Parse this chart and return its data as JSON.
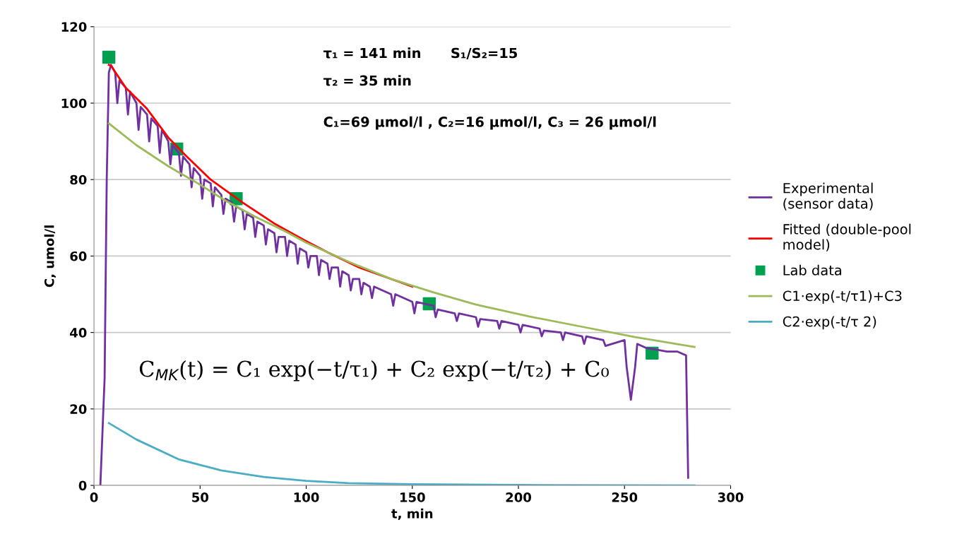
{
  "chart_data": {
    "type": "line",
    "xlabel": "t, min",
    "ylabel": "C, umol/l",
    "xlim": [
      0,
      300
    ],
    "xticks": [
      0,
      50,
      100,
      150,
      200,
      250,
      300
    ],
    "ylim": [
      0,
      120
    ],
    "yticks": [
      0,
      20,
      40,
      60,
      80,
      100,
      120
    ],
    "grid": "y",
    "legend": "right",
    "marker": "none",
    "line_style": "solid",
    "annotations": [
      "τ₁ = 141 min",
      "τ₂ = 35 min",
      "S₁/S₂=15",
      "C₁=69 μmol/l , C₂=16 μmol/l, C₃ = 26 μmol/l",
      "C$_{MK}$(t) = C₁ exp(−t/τ₁) + C₂ exp(−t/τ₂) + C₀"
    ],
    "series": [
      {
        "name": "Experimental\n(sensor data)",
        "color": "#7030a0",
        "x": [
          3,
          4,
          5,
          6,
          7,
          8,
          10,
          11,
          12,
          15,
          16,
          17,
          20,
          21,
          22,
          25,
          26,
          27,
          30,
          31,
          32,
          35,
          36,
          37,
          40,
          41,
          42,
          45,
          46,
          47,
          50,
          51,
          52,
          55,
          56,
          57,
          60,
          61,
          62,
          65,
          66,
          67,
          70,
          71,
          72,
          75,
          76,
          77,
          80,
          81,
          82,
          85,
          86,
          87,
          90,
          91,
          92,
          95,
          96,
          97,
          100,
          101,
          102,
          105,
          106,
          107,
          110,
          111,
          112,
          115,
          116,
          117,
          120,
          121,
          122,
          125,
          126,
          127,
          130,
          131,
          132,
          140,
          141,
          142,
          150,
          151,
          152,
          160,
          161,
          162,
          170,
          171,
          172,
          180,
          181,
          182,
          190,
          191,
          192,
          200,
          201,
          202,
          210,
          211,
          212,
          220,
          221,
          222,
          230,
          231,
          232,
          240,
          241,
          250,
          251,
          253,
          255,
          256,
          260,
          265,
          270,
          275,
          279,
          280
        ],
        "values": [
          0,
          14,
          28,
          80,
          108,
          110,
          108,
          100,
          106,
          104,
          97,
          103,
          100,
          93,
          99,
          97,
          90,
          96,
          94,
          87,
          93,
          90,
          84,
          89,
          87,
          81,
          86,
          84,
          78,
          83,
          81,
          75,
          80,
          79,
          73,
          78,
          76,
          71,
          75,
          74,
          69,
          73,
          72,
          67,
          71,
          70,
          65,
          69,
          68,
          63,
          67,
          66,
          61,
          65,
          65,
          60,
          64,
          63,
          58,
          62,
          61,
          57,
          60,
          60,
          55,
          59,
          58,
          54,
          57,
          57,
          52,
          56,
          55,
          51,
          54,
          54,
          50,
          53,
          52,
          49,
          52,
          50,
          47,
          50,
          48,
          45,
          48,
          47,
          44,
          46,
          45,
          43,
          45,
          44,
          41.5,
          43.5,
          43,
          41,
          43,
          42,
          40,
          42,
          41,
          39,
          40.5,
          40,
          38,
          40,
          39,
          37,
          39,
          38,
          36.5,
          38,
          31,
          22.4,
          31,
          37,
          36,
          35.5,
          35,
          35,
          34,
          2
        ]
      },
      {
        "name": "Fitted (double-pool\nmodel)",
        "color": "#ff0000",
        "x": [
          7,
          8,
          15,
          25,
          35,
          43,
          55,
          70,
          85,
          99,
          110,
          125,
          145,
          150
        ],
        "values": [
          110,
          109.8,
          104,
          98.5,
          91,
          86.4,
          80,
          74,
          68.5,
          64.2,
          61,
          57,
          53,
          52
        ]
      },
      {
        "name": "Lab data",
        "type": "scatter",
        "marker": "square",
        "color": "#00a050",
        "x": [
          7,
          39,
          67,
          158,
          263
        ],
        "values": [
          112,
          88,
          75,
          47.5,
          34.6
        ]
      },
      {
        "name": "C1·exp(-t/τ1)+C3",
        "color": "#9bbb59",
        "x": [
          7,
          20,
          35,
          49,
          62,
          76,
          90,
          100,
          120,
          140,
          160,
          180,
          205,
          230,
          255,
          283
        ],
        "values": [
          94.7,
          89,
          83.5,
          79,
          74.5,
          70.3,
          66.5,
          63.5,
          58.5,
          54,
          50.5,
          47.3,
          44.2,
          41.5,
          38.8,
          36.2
        ]
      },
      {
        "name": "C2·exp(-t/τ 2)",
        "color": "#4bacc6",
        "x": [
          7,
          20,
          40,
          60,
          80,
          100,
          120,
          150,
          200,
          283
        ],
        "values": [
          16.3,
          12,
          6.8,
          3.9,
          2.2,
          1.2,
          0.6,
          0.3,
          0.1,
          0
        ]
      }
    ]
  }
}
